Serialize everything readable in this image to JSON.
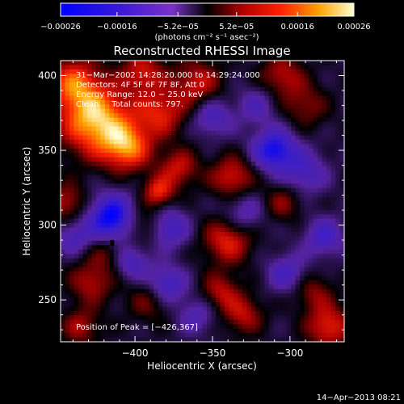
{
  "chart_data": {
    "type": "heatmap",
    "title": "Reconstructed RHESSI Image",
    "xlabel": "Heliocentric X (arcsec)",
    "ylabel": "Heliocentric Y (arcsec)",
    "xlim": [
      -448,
      -265
    ],
    "ylim": [
      222,
      410
    ],
    "x_ticks": [
      -400,
      -350,
      -300
    ],
    "x_tick_labels": [
      "−400",
      "−350",
      "−300"
    ],
    "y_ticks": [
      250,
      300,
      350,
      400
    ],
    "y_tick_labels": [
      "250",
      "300",
      "350",
      "400"
    ],
    "colorbar": {
      "range": [
        -0.00026,
        0.00026
      ],
      "ticks": [
        -0.00026,
        -0.00016,
        -5.2e-05,
        5.2e-05,
        0.00016,
        0.00026
      ],
      "tick_labels": [
        "−0.00026",
        "−0.00016",
        "−5.2e−05",
        "5.2e−05",
        "0.00016",
        "0.00026"
      ],
      "unit_label": "(photons cm⁻² s⁻¹ asec⁻²)"
    },
    "annotations": [
      "31−Mar−2002 14:28:20.000 to 14:29:24.000",
      "Detectors: 4F 5F 6F 7F 8F, Att 0",
      "Energy Range: 12.0 − 25.0 keV",
      "Clean     Total counts: 797."
    ],
    "peak_label": "Position of Peak = [−426,367]",
    "peak": [
      -426,
      367
    ],
    "features": [
      {
        "x": -425,
        "y": 370,
        "v": 1.0,
        "s": 16
      },
      {
        "x": -440,
        "y": 395,
        "v": 0.65,
        "s": 12
      },
      {
        "x": -405,
        "y": 352,
        "v": 0.75,
        "s": 11
      },
      {
        "x": -383,
        "y": 375,
        "v": 0.55,
        "s": 11
      },
      {
        "x": -360,
        "y": 395,
        "v": 0.5,
        "s": 11
      },
      {
        "x": -395,
        "y": 402,
        "v": 0.5,
        "s": 10
      },
      {
        "x": -337,
        "y": 332,
        "v": 0.55,
        "s": 10
      },
      {
        "x": -372,
        "y": 338,
        "v": 0.5,
        "s": 9
      },
      {
        "x": -385,
        "y": 322,
        "v": 0.6,
        "s": 7
      },
      {
        "x": -395,
        "y": 300,
        "v": 0.35,
        "s": 9
      },
      {
        "x": -340,
        "y": 290,
        "v": 0.6,
        "s": 11
      },
      {
        "x": -305,
        "y": 400,
        "v": 0.45,
        "s": 10
      },
      {
        "x": -290,
        "y": 380,
        "v": 0.35,
        "s": 10
      },
      {
        "x": -305,
        "y": 315,
        "v": 0.35,
        "s": 9
      },
      {
        "x": -345,
        "y": 255,
        "v": 0.45,
        "s": 9
      },
      {
        "x": -330,
        "y": 240,
        "v": 0.45,
        "s": 9
      },
      {
        "x": -275,
        "y": 232,
        "v": 0.6,
        "s": 10
      },
      {
        "x": -285,
        "y": 255,
        "v": 0.35,
        "s": 9
      },
      {
        "x": -390,
        "y": 250,
        "v": 0.35,
        "s": 10
      },
      {
        "x": -428,
        "y": 262,
        "v": 0.45,
        "s": 10
      },
      {
        "x": -435,
        "y": 232,
        "v": 0.4,
        "s": 9
      },
      {
        "x": -444,
        "y": 315,
        "v": 0.45,
        "s": 9
      },
      {
        "x": -418,
        "y": 282,
        "v": 0.3,
        "s": 8
      },
      {
        "x": -415,
        "y": 305,
        "v": -0.9,
        "s": 11
      },
      {
        "x": -378,
        "y": 298,
        "v": -0.55,
        "s": 9
      },
      {
        "x": -402,
        "y": 275,
        "v": -0.45,
        "s": 8
      },
      {
        "x": -310,
        "y": 350,
        "v": -0.8,
        "s": 10
      },
      {
        "x": -290,
        "y": 335,
        "v": -0.45,
        "s": 10
      },
      {
        "x": -380,
        "y": 260,
        "v": -0.6,
        "s": 9
      },
      {
        "x": -330,
        "y": 308,
        "v": -0.4,
        "s": 10
      },
      {
        "x": -350,
        "y": 372,
        "v": -0.45,
        "s": 9
      },
      {
        "x": -278,
        "y": 292,
        "v": -0.5,
        "s": 9
      },
      {
        "x": -302,
        "y": 268,
        "v": -0.45,
        "s": 9
      },
      {
        "x": -440,
        "y": 292,
        "v": -0.4,
        "s": 8
      },
      {
        "x": -322,
        "y": 380,
        "v": -0.35,
        "s": 9
      },
      {
        "x": -360,
        "y": 240,
        "v": -0.35,
        "s": 9
      }
    ]
  },
  "timestamp": "14−Apr−2013 08:21"
}
